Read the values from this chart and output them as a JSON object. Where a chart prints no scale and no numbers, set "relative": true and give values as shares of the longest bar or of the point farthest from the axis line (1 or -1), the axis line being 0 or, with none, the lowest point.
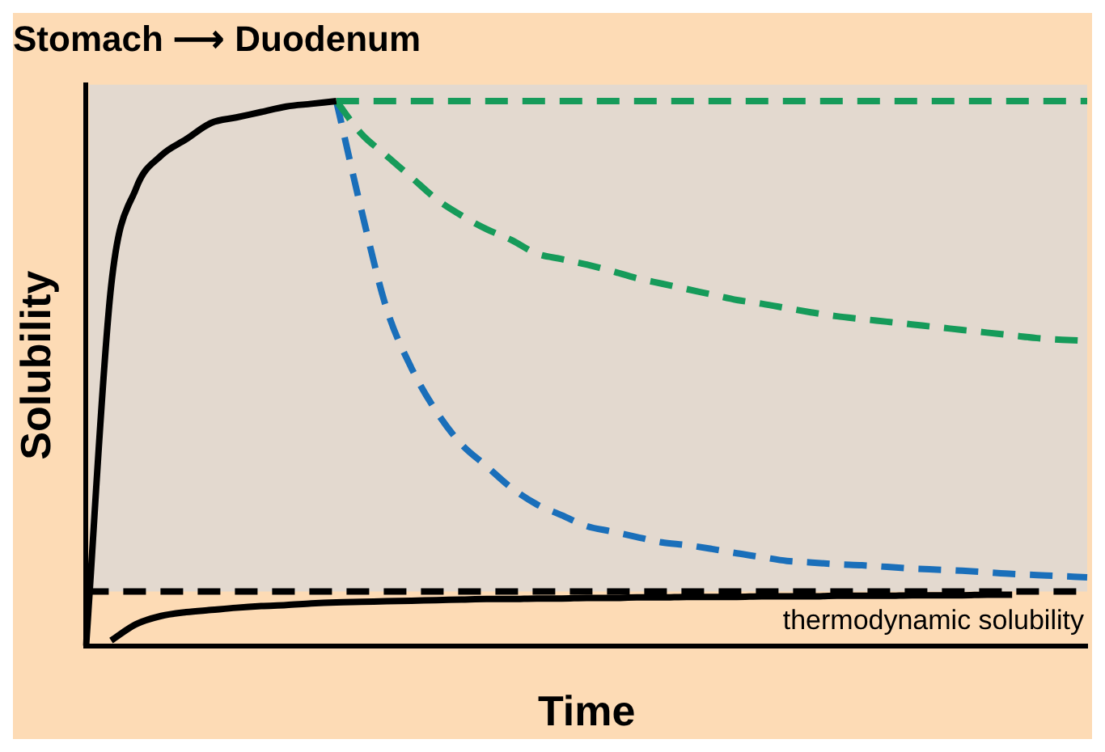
{
  "chart_data": {
    "type": "line",
    "title": "Stomach ⟶ Duodenum",
    "xlabel": "Time",
    "ylabel": "Solubility",
    "relative": true,
    "categories": [
      null,
      null,
      null,
      null,
      null,
      null,
      null,
      null,
      null,
      null,
      null,
      null,
      null,
      null,
      null,
      null,
      null,
      null,
      null,
      null,
      null,
      null,
      null,
      null,
      null,
      null,
      null,
      null,
      null,
      null,
      null,
      null,
      null,
      null,
      null,
      null,
      null,
      null,
      null,
      null,
      null
    ],
    "series": [
      {
        "color": "#000000",
        "line_style": "solid",
        "values": [
          0,
          0.66,
          0.84,
          0.9,
          0.93,
          0.96,
          0.97,
          0.98,
          0.99,
          0.995,
          1,
          null,
          null,
          null,
          null,
          null,
          null,
          null,
          null,
          null,
          null,
          null,
          null,
          null,
          null,
          null,
          null,
          null,
          null,
          null,
          null,
          null,
          null,
          null,
          null,
          null,
          null,
          null,
          null,
          null,
          null
        ]
      },
      {
        "color": "#169b5a",
        "line_style": "dashed",
        "values": [
          null,
          null,
          null,
          null,
          null,
          null,
          null,
          null,
          null,
          null,
          1,
          1,
          1,
          1,
          1,
          1,
          1,
          1,
          1,
          1,
          1,
          1,
          1,
          1,
          1,
          1,
          1,
          1,
          1,
          1,
          1,
          1,
          1,
          1,
          1,
          1,
          1,
          1,
          1,
          1,
          1
        ]
      },
      {
        "color": "#169b5a",
        "line_style": "dashed",
        "values": [
          null,
          null,
          null,
          null,
          null,
          null,
          null,
          null,
          null,
          null,
          1,
          0.94,
          0.9,
          0.86,
          0.82,
          0.79,
          0.765,
          0.745,
          0.72,
          0.71,
          0.7,
          0.688,
          0.675,
          0.665,
          0.655,
          0.645,
          0.635,
          0.628,
          0.62,
          0.612,
          0.605,
          0.6,
          0.595,
          0.59,
          0.585,
          0.58,
          0.575,
          0.57,
          0.565,
          0.562,
          0.56
        ]
      },
      {
        "color": "#1a6fba",
        "line_style": "dashed",
        "values": [
          null,
          null,
          null,
          null,
          null,
          null,
          null,
          null,
          null,
          null,
          1,
          0.8,
          0.62,
          0.51,
          0.43,
          0.37,
          0.33,
          0.29,
          0.26,
          0.24,
          0.22,
          0.21,
          0.2,
          0.19,
          0.185,
          0.178,
          0.17,
          0.163,
          0.156,
          0.153,
          0.15,
          0.148,
          0.145,
          0.142,
          0.14,
          0.138,
          0.135,
          0.132,
          0.13,
          0.128,
          0.126
        ]
      },
      {
        "color": "#000000",
        "line_style": "solid",
        "values": [
          null,
          0.01,
          0.04,
          0.055,
          0.062,
          0.066,
          0.07,
          0.073,
          0.075,
          0.078,
          0.08,
          0.081,
          0.082,
          0.083,
          0.084,
          0.085,
          0.086,
          0.086,
          0.087,
          0.087,
          0.088,
          0.088,
          0.089,
          0.089,
          0.09,
          0.09,
          0.09,
          0.091,
          0.091,
          0.091,
          0.092,
          0.092,
          0.092,
          0.093,
          0.093,
          0.093,
          0.094,
          0.094,
          null,
          null,
          null
        ]
      }
    ],
    "ref_lines": [
      {
        "axis": "y",
        "value": 0.1,
        "label": "thermodynamic solubility",
        "color": "#000000",
        "line_style": "dashed"
      }
    ],
    "bands": [
      {
        "axis": "y",
        "from": 0.1,
        "to": 1.03,
        "color": "#e3d9cf"
      }
    ],
    "grid": false,
    "legend": false
  }
}
